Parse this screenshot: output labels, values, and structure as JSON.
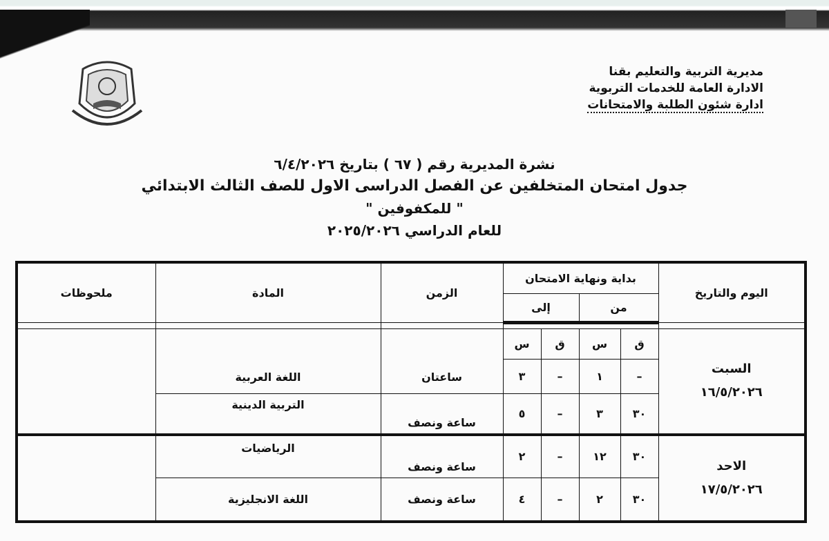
{
  "header": {
    "org_lines": [
      "مديرية التربية والتعليم بقنا",
      "الادارة العامة للخدمات التربوية",
      "ادارة شئون الطلبة والامتحانات"
    ],
    "logo_text": "مديرية التربية والتعليم"
  },
  "titles": {
    "bulletin": "نشرة المديرية رقم ( ٦٧ ) بتاريخ ٦/٤/٢٠٢٦",
    "schedule": "جدول امتحان المتخلفين عن الفصل الدراسى الاول للصف الثالث الابتدائي",
    "audience": "\" للمكفوفين \"",
    "year": "للعام الدراسي ٢٠٢٥/٢٠٢٦"
  },
  "table": {
    "headers": {
      "day_date": "اليوم والتاريخ",
      "start_end": "بداية ونهاية الامتحان",
      "from": "من",
      "to": "إلى",
      "duration": "الزمن",
      "subject": "المادة",
      "notes": "ملحوظات",
      "minute": "ق",
      "hour": "س"
    },
    "days": [
      {
        "day": "السبت",
        "date": "١٦/٥/٢٠٢٦",
        "rows": [
          {
            "from_min": "–",
            "from_hour": "١",
            "to_min": "–",
            "to_hour": "٣",
            "duration": "ساعتان",
            "subject": "اللغة العربية"
          },
          {
            "from_min": "٣٠",
            "from_hour": "٣",
            "to_min": "–",
            "to_hour": "٥",
            "duration": "ساعة ونصف",
            "subject": "التربية الدينية"
          }
        ]
      },
      {
        "day": "الاحد",
        "date": "١٧/٥/٢٠٢٦",
        "rows": [
          {
            "from_min": "٣٠",
            "from_hour": "١٢",
            "to_min": "–",
            "to_hour": "٢",
            "duration": "ساعة ونصف",
            "subject": "الرياضيات"
          },
          {
            "from_min": "٣٠",
            "from_hour": "٢",
            "to_min": "–",
            "to_hour": "٤",
            "duration": "ساعة ونصف",
            "subject": "اللغة الانجليزية"
          }
        ]
      }
    ]
  }
}
